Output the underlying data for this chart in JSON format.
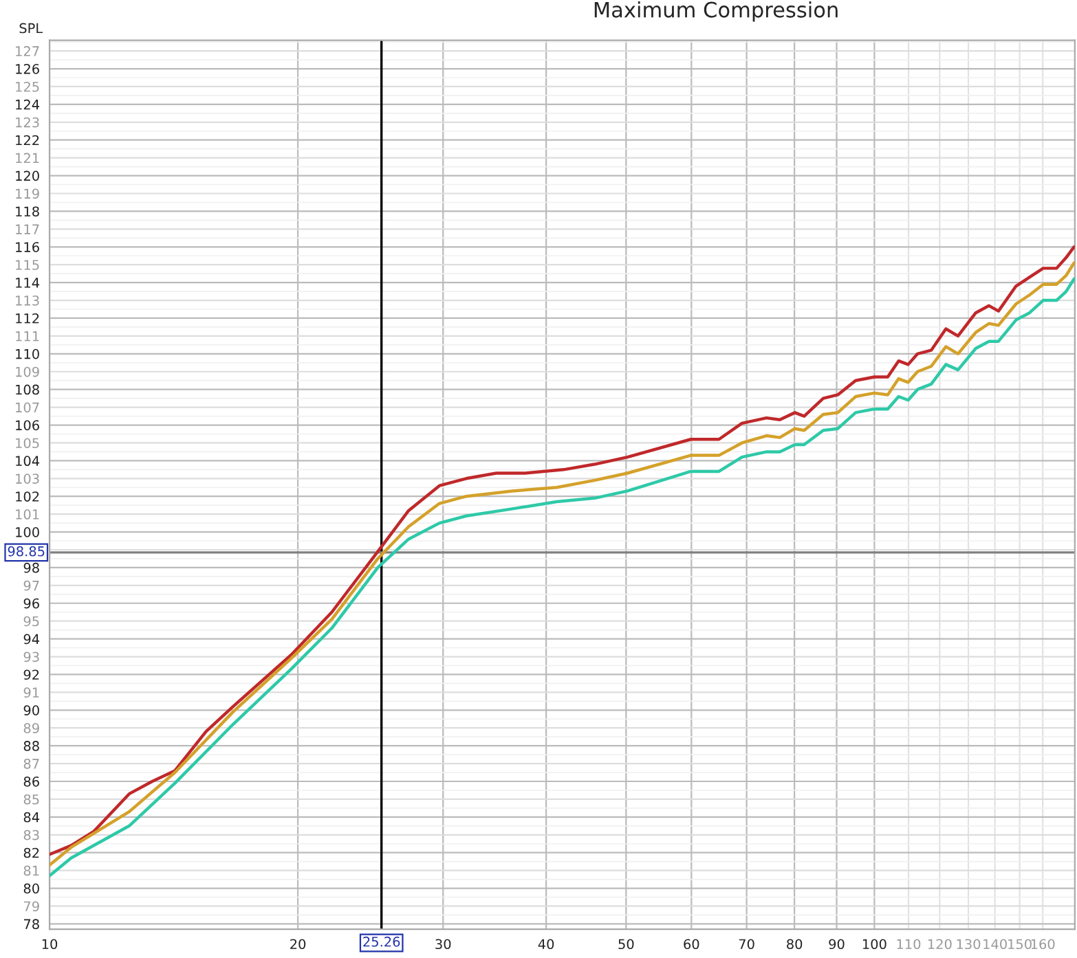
{
  "chart_data": {
    "type": "line",
    "title": "Maximum Compression",
    "ylabel": "SPL",
    "xlim": [
      10,
      175
    ],
    "ylim": [
      77.7,
      127.6
    ],
    "log": "x",
    "grid": true,
    "legend": false,
    "line_style": "solid",
    "marker": "none",
    "xticks": [
      10,
      20,
      30,
      40,
      50,
      60,
      70,
      80,
      90,
      100,
      110,
      120,
      130,
      140,
      150,
      160
    ],
    "yticks": [
      78,
      79,
      80,
      81,
      82,
      83,
      84,
      85,
      86,
      87,
      88,
      89,
      90,
      91,
      92,
      93,
      94,
      95,
      96,
      97,
      98,
      {
        "value": 99,
        "label": null
      },
      100,
      101,
      102,
      103,
      104,
      105,
      106,
      107,
      108,
      109,
      110,
      111,
      112,
      113,
      114,
      115,
      116,
      117,
      118,
      119,
      120,
      121,
      122,
      123,
      124,
      125,
      126,
      127
    ],
    "ref_lines": [
      {
        "axis": "x",
        "value": 25.26,
        "label": "25.26",
        "color": "#000000"
      },
      {
        "axis": "y",
        "value": 98.85,
        "label": "98.85",
        "color": "#808080"
      }
    ],
    "series": [
      {
        "color": "#c0282a",
        "x": [
          10,
          10.62,
          11.32,
          12.49,
          13.32,
          14.19,
          15.48,
          16.69,
          19.63,
          21.99,
          25.0,
          27.25,
          29.7,
          32.0,
          34.8,
          37.7,
          42.0,
          45.8,
          50.2,
          59.9,
          64.8,
          69.1,
          74.0,
          76.8,
          80.1,
          82.2,
          86.7,
          90.3,
          94.9,
          100,
          103.8,
          107.0,
          109.9,
          112.8,
          117.2,
          122.1,
          126.3,
          132.7,
          137.7,
          141.4,
          148.5,
          154.2,
          160.2,
          166.3,
          170.8,
          174.6
        ],
        "values": [
          81.9,
          82.4,
          83.2,
          85.3,
          86.0,
          86.6,
          88.8,
          90.2,
          93.1,
          95.5,
          98.9,
          101.2,
          102.6,
          103.0,
          103.3,
          103.3,
          103.5,
          103.8,
          104.2,
          105.2,
          105.2,
          106.1,
          106.4,
          106.3,
          106.7,
          106.5,
          107.5,
          107.7,
          108.5,
          108.7,
          108.7,
          109.6,
          109.4,
          110.0,
          110.2,
          111.4,
          111.0,
          112.3,
          112.7,
          112.4,
          113.8,
          114.3,
          114.8,
          114.8,
          115.4,
          116.0
        ]
      },
      {
        "color": "#d4a12a",
        "x": [
          10,
          10.62,
          12.49,
          14.19,
          16.69,
          19.63,
          21.99,
          25.0,
          27.25,
          29.7,
          32.0,
          36.4,
          41.2,
          45.8,
          50.2,
          59.9,
          64.8,
          69.1,
          74.0,
          76.8,
          80.1,
          82.2,
          86.7,
          90.3,
          94.9,
          100,
          103.8,
          107.0,
          109.9,
          112.8,
          117.2,
          122.1,
          126.3,
          132.7,
          137.7,
          141.4,
          148.5,
          154.2,
          160.2,
          166.3,
          170.8,
          174.6
        ],
        "values": [
          81.3,
          82.3,
          84.3,
          86.5,
          89.9,
          92.9,
          95.1,
          98.5,
          100.3,
          101.6,
          102.0,
          102.3,
          102.5,
          102.9,
          103.3,
          104.3,
          104.3,
          105.0,
          105.4,
          105.3,
          105.8,
          105.7,
          106.6,
          106.7,
          107.6,
          107.8,
          107.7,
          108.6,
          108.4,
          109.0,
          109.3,
          110.4,
          110.0,
          111.2,
          111.7,
          111.6,
          112.8,
          113.3,
          113.9,
          113.9,
          114.4,
          115.1
        ]
      },
      {
        "color": "#2ec9a8",
        "x": [
          10,
          10.62,
          12.49,
          14.19,
          16.69,
          19.63,
          21.99,
          25.0,
          27.25,
          29.7,
          32.0,
          36.4,
          41.2,
          45.8,
          50.2,
          59.9,
          64.8,
          69.1,
          74.0,
          76.8,
          80.1,
          82.2,
          86.7,
          90.3,
          94.9,
          100,
          103.8,
          107.0,
          109.9,
          112.8,
          117.2,
          122.1,
          126.3,
          132.7,
          137.7,
          141.4,
          148.5,
          154.2,
          160.2,
          166.3,
          170.8,
          174.6
        ],
        "values": [
          80.7,
          81.7,
          83.5,
          85.9,
          89.2,
          92.3,
          94.6,
          98.0,
          99.6,
          100.5,
          100.9,
          101.3,
          101.7,
          101.9,
          102.3,
          103.4,
          103.4,
          104.2,
          104.5,
          104.5,
          104.9,
          104.9,
          105.7,
          105.8,
          106.7,
          106.9,
          106.9,
          107.6,
          107.4,
          108.0,
          108.3,
          109.4,
          109.1,
          110.3,
          110.7,
          110.7,
          111.9,
          112.3,
          113.0,
          113.0,
          113.5,
          114.2
        ]
      }
    ]
  }
}
